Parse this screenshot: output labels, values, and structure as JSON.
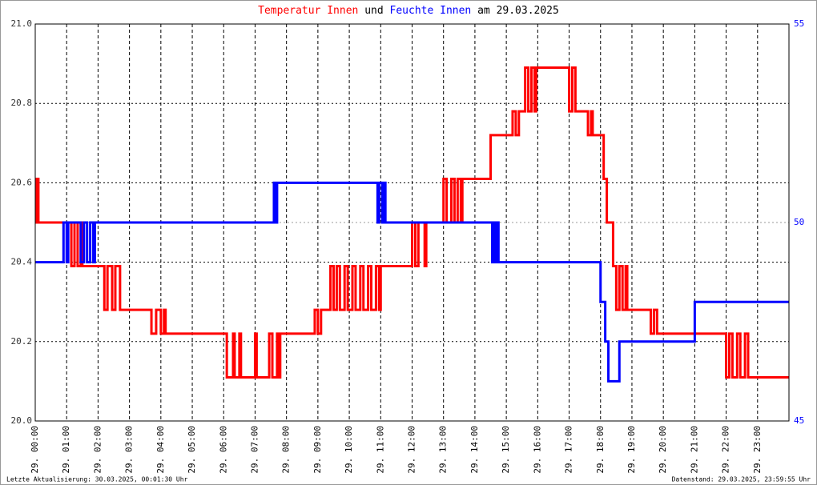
{
  "chart_data": {
    "type": "line",
    "step": "post",
    "title_parts": [
      {
        "text": "Temperatur Innen",
        "color": "#ff0000"
      },
      {
        "text": "und",
        "color": "#000000"
      },
      {
        "text": "Feuchte Innen",
        "color": "#0000ff"
      },
      {
        "text": "am 29.03.2025",
        "color": "#000000"
      }
    ],
    "footer_left": "Letzte Aktualisierung: 30.03.2025, 00:01:30 Uhr",
    "footer_right": "Datenstand: 29.03.2025, 23:59:55 Uhr",
    "xlim": [
      0,
      24
    ],
    "xticks": [
      {
        "value": 0,
        "label": "29. 00:00"
      },
      {
        "value": 1,
        "label": "29. 01:00"
      },
      {
        "value": 2,
        "label": "29. 02:00"
      },
      {
        "value": 3,
        "label": "29. 03:00"
      },
      {
        "value": 4,
        "label": "29. 04:00"
      },
      {
        "value": 5,
        "label": "29. 05:00"
      },
      {
        "value": 6,
        "label": "29. 06:00"
      },
      {
        "value": 7,
        "label": "29. 07:00"
      },
      {
        "value": 8,
        "label": "29. 08:00"
      },
      {
        "value": 9,
        "label": "29. 09:00"
      },
      {
        "value": 10,
        "label": "29. 10:00"
      },
      {
        "value": 11,
        "label": "29. 11:00"
      },
      {
        "value": 12,
        "label": "29. 12:00"
      },
      {
        "value": 13,
        "label": "29. 13:00"
      },
      {
        "value": 14,
        "label": "29. 14:00"
      },
      {
        "value": 15,
        "label": "29. 15:00"
      },
      {
        "value": 16,
        "label": "29. 16:00"
      },
      {
        "value": 17,
        "label": "29. 17:00"
      },
      {
        "value": 18,
        "label": "29. 18:00"
      },
      {
        "value": 19,
        "label": "29. 19:00"
      },
      {
        "value": 20,
        "label": "29. 20:00"
      },
      {
        "value": 21,
        "label": "29. 21:00"
      },
      {
        "value": 22,
        "label": "29. 22:00"
      },
      {
        "value": 23,
        "label": "29. 23:00"
      }
    ],
    "ylim": [
      20,
      21
    ],
    "yticks": [
      {
        "value": 20,
        "label": "20.0"
      },
      {
        "value": 20.2,
        "label": "20.2"
      },
      {
        "value": 20.4,
        "label": "20.4"
      },
      {
        "value": 20.6,
        "label": "20.6"
      },
      {
        "value": 20.8,
        "label": "20.8"
      },
      {
        "value": 21,
        "label": "21.0"
      }
    ],
    "y2lim": [
      45,
      55
    ],
    "y2ticks": [
      45,
      50,
      55
    ],
    "grid": true,
    "series": [
      {
        "name": "Temperatur Innen",
        "color": "#ff0000",
        "x": [
          0,
          0.05,
          0.1,
          1.15,
          1.25,
          1.35,
          1.45,
          1.5,
          2.2,
          2.3,
          2.45,
          2.55,
          2.7,
          3.7,
          3.85,
          4.0,
          4.1,
          4.15,
          6.1,
          6.3,
          6.35,
          6.5,
          6.55,
          7.0,
          7.05,
          7.45,
          7.55,
          7.7,
          7.75,
          7.8,
          8.9,
          9.0,
          9.1,
          9.4,
          9.5,
          9.6,
          9.7,
          9.85,
          9.95,
          10.1,
          10.2,
          10.35,
          10.45,
          10.6,
          10.7,
          10.85,
          10.95,
          11.0,
          12.0,
          12.1,
          12.2,
          12.4,
          12.45,
          13.0,
          13.1,
          13.25,
          13.35,
          13.45,
          13.55,
          13.6,
          14.5,
          15.2,
          15.3,
          15.4,
          15.6,
          15.7,
          15.8,
          15.9,
          15.95,
          17.0,
          17.1,
          17.2,
          17.6,
          17.7,
          17.75,
          18.1,
          18.2,
          18.4,
          18.5,
          18.6,
          18.7,
          18.8,
          18.85,
          19.6,
          19.7,
          19.8,
          22.0,
          22.1,
          22.2,
          22.35,
          22.45,
          22.6,
          22.7,
          24
        ],
        "values": [
          20.5,
          20.61,
          20.5,
          20.39,
          20.5,
          20.39,
          20.5,
          20.39,
          20.28,
          20.39,
          20.28,
          20.39,
          20.28,
          20.22,
          20.28,
          20.22,
          20.28,
          20.22,
          20.11,
          20.22,
          20.11,
          20.22,
          20.11,
          20.22,
          20.11,
          20.22,
          20.11,
          20.22,
          20.11,
          20.22,
          20.28,
          20.22,
          20.28,
          20.39,
          20.28,
          20.39,
          20.28,
          20.39,
          20.28,
          20.39,
          20.28,
          20.39,
          20.28,
          20.39,
          20.28,
          20.39,
          20.28,
          20.39,
          20.5,
          20.39,
          20.5,
          20.39,
          20.5,
          20.61,
          20.5,
          20.61,
          20.5,
          20.61,
          20.5,
          20.61,
          20.72,
          20.78,
          20.72,
          20.78,
          20.89,
          20.78,
          20.89,
          20.78,
          20.89,
          20.78,
          20.89,
          20.78,
          20.72,
          20.78,
          20.72,
          20.61,
          20.5,
          20.39,
          20.28,
          20.39,
          20.28,
          20.39,
          20.28,
          20.22,
          20.28,
          20.22,
          20.11,
          20.22,
          20.11,
          20.22,
          20.11,
          20.22,
          20.11,
          20.11
        ]
      },
      {
        "name": "Feuchte Innen",
        "color": "#0000ff",
        "axis": "y2",
        "x": [
          0,
          0.9,
          1.0,
          1.05,
          1.45,
          1.55,
          1.65,
          1.75,
          1.85,
          1.9,
          7.6,
          7.65,
          7.7,
          10.9,
          10.95,
          11.05,
          11.1,
          11.15,
          14.55,
          14.6,
          14.65,
          14.7,
          14.75,
          18.0,
          18.15,
          18.25,
          18.6,
          21.0,
          24
        ],
        "values": [
          49,
          50,
          49,
          50,
          49,
          50,
          49,
          50,
          49,
          50,
          51,
          50,
          51,
          50,
          51,
          50,
          51,
          50,
          49,
          50,
          49,
          50,
          49,
          48,
          47,
          46,
          47,
          48,
          48
        ]
      }
    ]
  }
}
